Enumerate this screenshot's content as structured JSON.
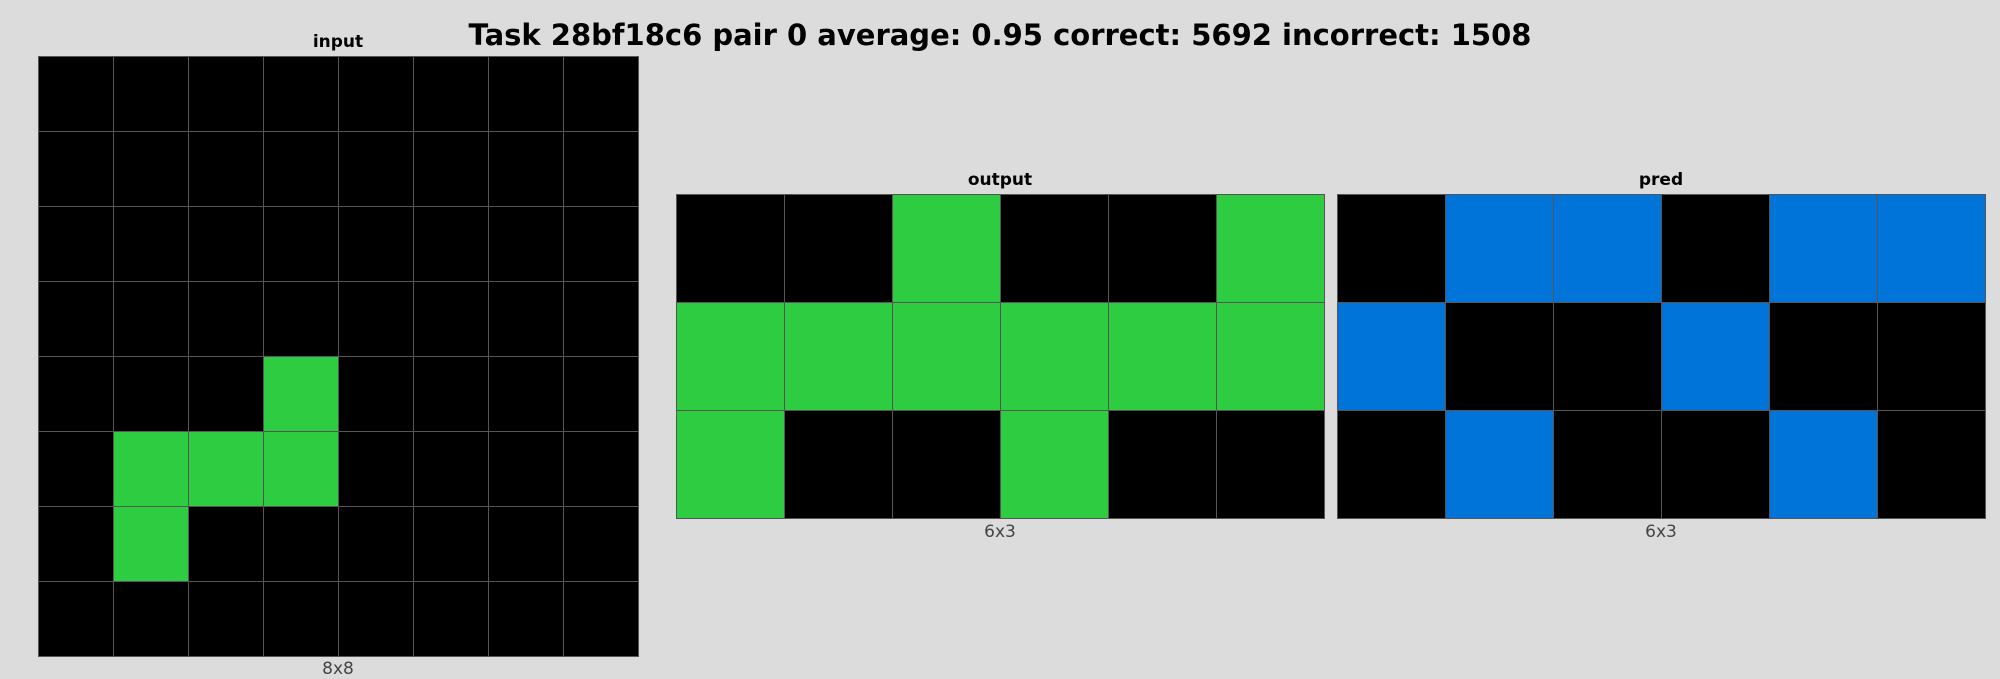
{
  "title": "Task 28bf18c6 pair 0 average: 0.95 correct: 5692 incorrect: 1508",
  "palette": {
    "0": "#000000",
    "1": "#0074D9",
    "3": "#2ECC40"
  },
  "panels": {
    "input": {
      "label": "input",
      "size_label": "8x8",
      "cols": 8,
      "rows": 8,
      "cells": [
        [
          0,
          0,
          0,
          0,
          0,
          0,
          0,
          0
        ],
        [
          0,
          0,
          0,
          0,
          0,
          0,
          0,
          0
        ],
        [
          0,
          0,
          0,
          0,
          0,
          0,
          0,
          0
        ],
        [
          0,
          0,
          0,
          0,
          0,
          0,
          0,
          0
        ],
        [
          0,
          0,
          0,
          3,
          0,
          0,
          0,
          0
        ],
        [
          0,
          3,
          3,
          3,
          0,
          0,
          0,
          0
        ],
        [
          0,
          3,
          0,
          0,
          0,
          0,
          0,
          0
        ],
        [
          0,
          0,
          0,
          0,
          0,
          0,
          0,
          0
        ]
      ]
    },
    "output": {
      "label": "output",
      "size_label": "6x3",
      "cols": 6,
      "rows": 3,
      "cells": [
        [
          0,
          0,
          3,
          0,
          0,
          3
        ],
        [
          3,
          3,
          3,
          3,
          3,
          3
        ],
        [
          3,
          0,
          0,
          3,
          0,
          0
        ]
      ]
    },
    "pred": {
      "label": "pred",
      "size_label": "6x3",
      "cols": 6,
      "rows": 3,
      "cells": [
        [
          0,
          1,
          1,
          0,
          1,
          1
        ],
        [
          1,
          0,
          0,
          1,
          0,
          0
        ],
        [
          0,
          1,
          0,
          0,
          1,
          0
        ]
      ]
    }
  }
}
